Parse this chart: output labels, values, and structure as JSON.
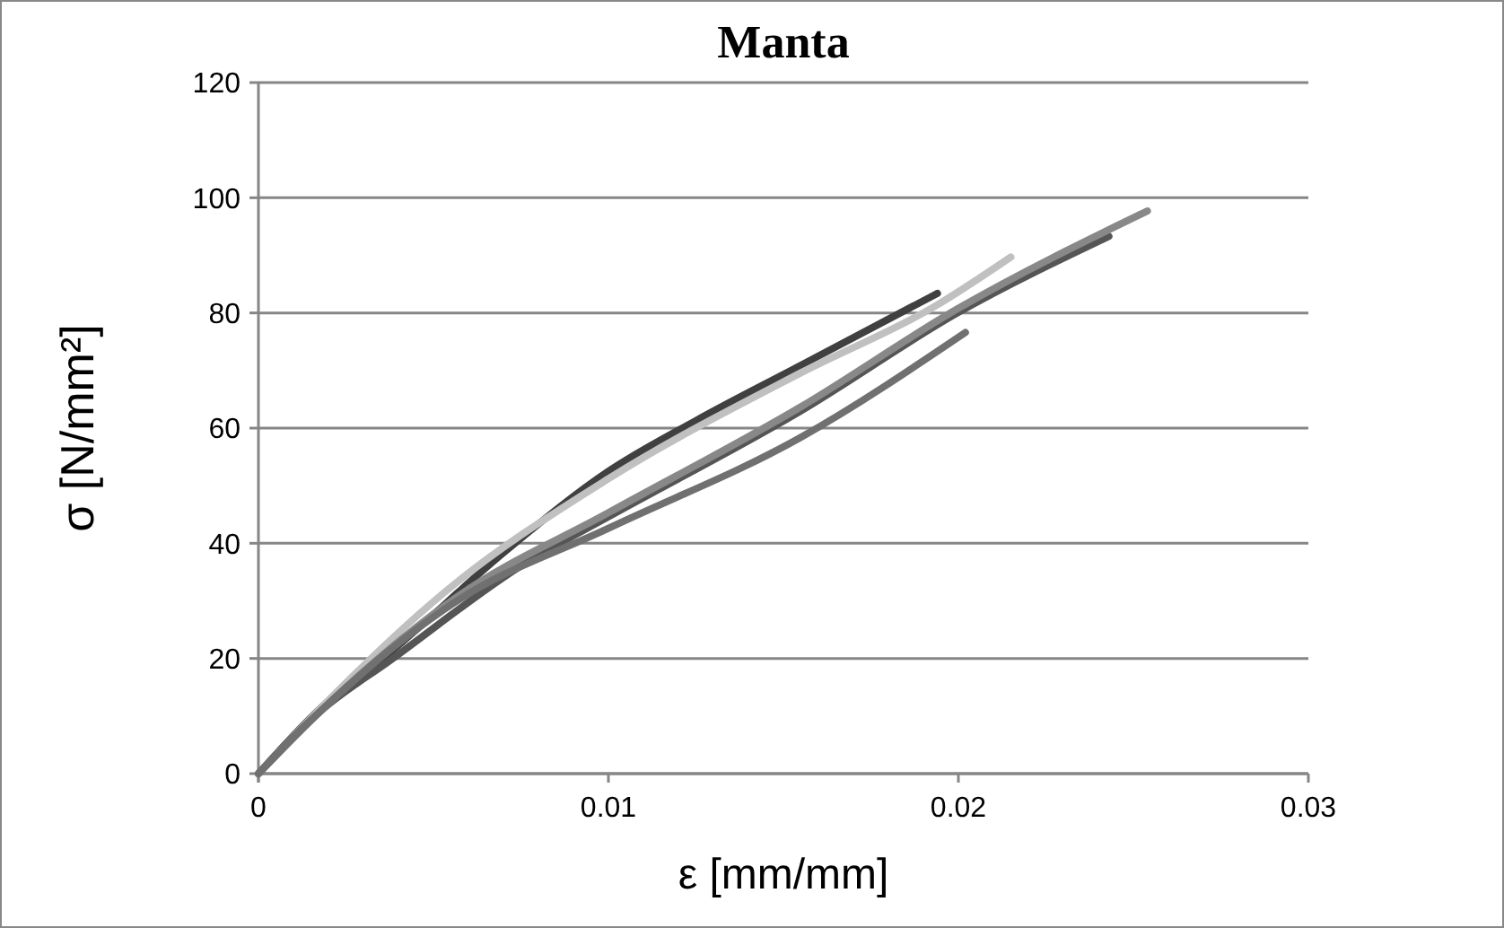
{
  "chart_data": {
    "type": "line",
    "title": "Manta",
    "xlabel": "ε [mm/mm]",
    "ylabel": "σ [N/mm²]",
    "xlim": [
      0,
      0.03
    ],
    "xticks": [
      0,
      0.01,
      0.02,
      0.03
    ],
    "ylim": [
      0,
      120
    ],
    "yticks": [
      0,
      20,
      40,
      60,
      80,
      100,
      120
    ],
    "grid": "y",
    "marker": "none",
    "line_style": "solid",
    "series": [
      {
        "color": "#404040",
        "x": [
          0,
          0.0018,
          0.00375,
          0.00707,
          0.01,
          0.0125,
          0.0155,
          0.0194
        ],
        "values": [
          0,
          11.5,
          21,
          38.7,
          52.5,
          61.3,
          70.9,
          83.4
        ]
      },
      {
        "color": "#c0c0c0",
        "x": [
          0,
          0.0018,
          0.0053,
          0.01,
          0.0155,
          0.0194,
          0.0215
        ],
        "values": [
          0,
          11.5,
          31.4,
          51.2,
          69.6,
          81.4,
          89.7
        ]
      },
      {
        "color": "#555555",
        "x": [
          0,
          0.0018,
          0.00375,
          0.00766,
          0.01,
          0.0155,
          0.02,
          0.0243
        ],
        "values": [
          0,
          11,
          19.6,
          36.7,
          44.6,
          63,
          80.1,
          93.3
        ]
      },
      {
        "color": "#888888",
        "x": [
          0,
          0.0018,
          0.0057,
          0.01,
          0.0155,
          0.02,
          0.0254
        ],
        "values": [
          0,
          11,
          30.8,
          45.3,
          63.7,
          80.8,
          97.7
        ]
      },
      {
        "color": "#707070",
        "x": [
          0,
          0.0018,
          0.0057,
          0.01,
          0.0155,
          0.0202
        ],
        "values": [
          0,
          11,
          30.1,
          42.6,
          58.4,
          76.6
        ]
      }
    ]
  }
}
